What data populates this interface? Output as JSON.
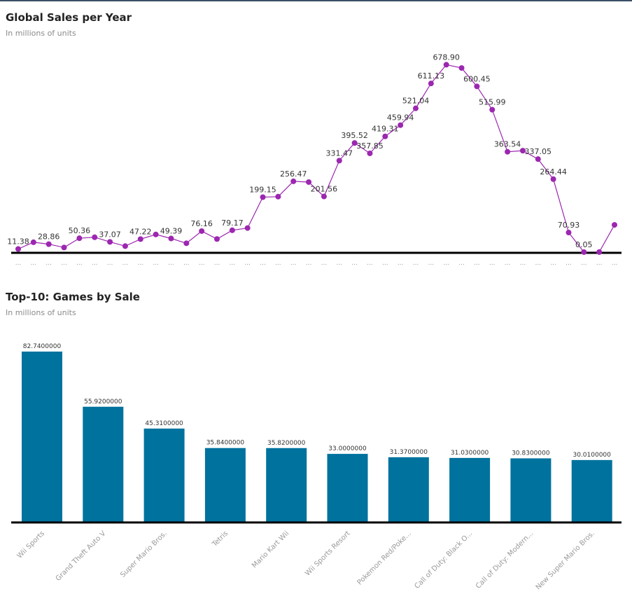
{
  "charts": {
    "line": {
      "title": "Global Sales per Year",
      "subtitle": "In millions of units"
    },
    "bar": {
      "title": "Top-10: Games by Sale",
      "subtitle": "In millions of units"
    }
  },
  "colors": {
    "line": "#9c27b0",
    "bar": "#00729e",
    "baseline": "#000000"
  },
  "chart_data": [
    {
      "type": "line",
      "title": "Global Sales per Year",
      "subtitle": "In millions of units",
      "x_tick_label": "...",
      "values": [
        11.38,
        35.77,
        28.86,
        16.79,
        50.36,
        53.94,
        37.07,
        21.74,
        47.22,
        64.0,
        49.39,
        32.13,
        76.16,
        47.51,
        79.17,
        87.31,
        199.15,
        200.97,
        256.47,
        253.85,
        201.56,
        331.47,
        395.52,
        357.85,
        419.31,
        459.94,
        521.04,
        611.13,
        678.9,
        667.12,
        600.45,
        515.99,
        363.54,
        367.6,
        337.05,
        264.44,
        70.93,
        0.05,
        0.2,
        98.7
      ],
      "labels": [
        "11.38",
        "",
        "28.86",
        "",
        "50.36",
        "",
        "37.07",
        "",
        "47.22",
        "",
        "49.39",
        "",
        "76.16",
        "",
        "79.17",
        "",
        "199.15",
        "",
        "256.47",
        "",
        "201.56",
        "331.47",
        "395.52",
        "357.85",
        "419.31",
        "459.94",
        "521.04",
        "611.13",
        "678.90",
        "",
        "600.45",
        "515.99",
        "363.54",
        "",
        "337.05",
        "264.44",
        "70.93",
        "0.05",
        "",
        ""
      ],
      "ylim": [
        0,
        680
      ]
    },
    {
      "type": "bar",
      "title": "Top-10: Games by Sale",
      "subtitle": "In millions of units",
      "categories": [
        "Wii Sports",
        "Grand Theft Auto V",
        "Super Mario Bros.",
        "Tetris",
        "Mario Kart Wii",
        "Wii Sports Resort",
        "Pokemon Red/Poke...",
        "Call of Duty: Black O...",
        "Call of Duty: Modern...",
        "New Super Mario Bros."
      ],
      "values": [
        82.74,
        55.92,
        45.31,
        35.84,
        35.82,
        33.0,
        31.37,
        31.03,
        30.83,
        30.01
      ],
      "value_labels": [
        "82.7400000",
        "55.9200000",
        "45.3100000",
        "35.8400000",
        "35.8200000",
        "33.0000000",
        "31.3700000",
        "31.0300000",
        "30.8300000",
        "30.0100000"
      ],
      "ylim": [
        0,
        82.74
      ]
    }
  ]
}
